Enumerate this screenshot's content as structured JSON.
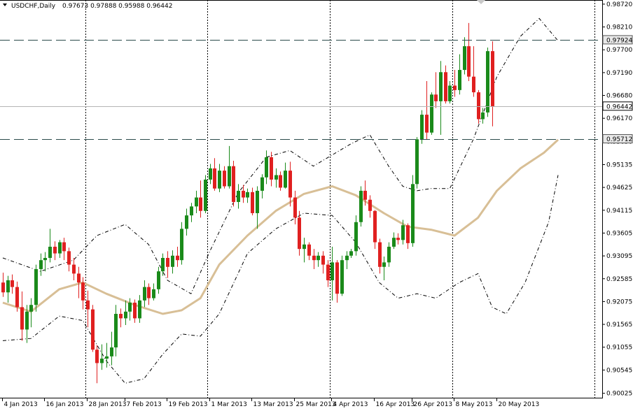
{
  "header": {
    "symbol": "USDCHF,Daily",
    "ohlc": "0.97673 0.97888 0.95988 0.96442"
  },
  "colors": {
    "bull": "#1a8a1a",
    "bear": "#e02020",
    "ma": "#d8bf96",
    "band": "#000000",
    "grid": "#000000",
    "background": "#ffffff"
  },
  "chart_data": {
    "type": "candlestick",
    "title": "USDCHF,Daily",
    "ylim": [
      0.9002,
      0.9875
    ],
    "y_ticks": [
      "0.98720",
      "0.98210",
      "0.97700",
      "0.97190",
      "0.96680",
      "0.96170",
      "0.95650",
      "0.95135",
      "0.94625",
      "0.94115",
      "0.93605",
      "0.93095",
      "0.92585",
      "0.92075",
      "0.91565",
      "0.91055",
      "0.90545",
      "0.90025"
    ],
    "x_ticks": [
      "4 Jan 2013",
      "16 Jan 2013",
      "28 Jan 2013",
      "7 Feb 2013",
      "19 Feb 2013",
      "1 Mar 2013",
      "13 Mar 2013",
      "25 Mar 2013",
      "4 Apr 2013",
      "16 Apr 2013",
      "26 Apr 2013",
      "8 May 2013",
      "20 May 2013"
    ],
    "x_tick_positions": [
      0,
      9,
      18,
      26,
      35,
      44,
      53,
      62,
      70,
      79,
      87,
      96,
      105
    ],
    "vertical_grid_at": [
      18,
      44,
      70,
      96
    ],
    "price_tags": [
      "0.97924",
      "0.96442",
      "0.95712"
    ],
    "price_tag_values": [
      0.97924,
      0.96442,
      0.95712
    ],
    "horizontal_levels_dashed": [
      0.97924,
      0.95712
    ],
    "horizontal_level_solid": 0.96442,
    "series": [
      {
        "name": "",
        "candles": [
          [
            0.925,
            0.9272,
            0.9218,
            0.9228
          ],
          [
            0.9228,
            0.9265,
            0.9205,
            0.9255
          ],
          [
            0.9255,
            0.9268,
            0.9225,
            0.924
          ],
          [
            0.924,
            0.9252,
            0.9185,
            0.9195
          ],
          [
            0.9195,
            0.923,
            0.912,
            0.9145
          ],
          [
            0.9145,
            0.92,
            0.9115,
            0.9185
          ],
          [
            0.9185,
            0.9215,
            0.915,
            0.92
          ],
          [
            0.92,
            0.929,
            0.9185,
            0.928
          ],
          [
            0.928,
            0.9315,
            0.9265,
            0.93
          ],
          [
            0.93,
            0.9318,
            0.9275,
            0.9305
          ],
          [
            0.9305,
            0.937,
            0.9295,
            0.933
          ],
          [
            0.933,
            0.9342,
            0.93,
            0.9315
          ],
          [
            0.9315,
            0.9345,
            0.9305,
            0.934
          ],
          [
            0.934,
            0.935,
            0.93,
            0.932
          ],
          [
            0.932,
            0.9328,
            0.9275,
            0.929
          ],
          [
            0.929,
            0.9305,
            0.9255,
            0.927
          ],
          [
            0.927,
            0.9285,
            0.9215,
            0.925
          ],
          [
            0.925,
            0.9262,
            0.919,
            0.921
          ],
          [
            0.921,
            0.9232,
            0.915,
            0.919
          ],
          [
            0.919,
            0.92,
            0.9095,
            0.91
          ],
          [
            0.91,
            0.911,
            0.9025,
            0.907
          ],
          [
            0.907,
            0.9112,
            0.9055,
            0.908
          ],
          [
            0.908,
            0.9115,
            0.906,
            0.9085
          ],
          [
            0.9085,
            0.914,
            0.9065,
            0.9105
          ],
          [
            0.9105,
            0.92,
            0.9085,
            0.918
          ],
          [
            0.918,
            0.9192,
            0.915,
            0.917
          ],
          [
            0.917,
            0.921,
            0.9155,
            0.9185
          ],
          [
            0.9185,
            0.9215,
            0.9165,
            0.9205
          ],
          [
            0.9205,
            0.9212,
            0.916,
            0.917
          ],
          [
            0.917,
            0.9222,
            0.916,
            0.921
          ],
          [
            0.921,
            0.9255,
            0.9195,
            0.924
          ],
          [
            0.924,
            0.9248,
            0.92,
            0.9215
          ],
          [
            0.9215,
            0.9248,
            0.921,
            0.9235
          ],
          [
            0.9235,
            0.9285,
            0.9225,
            0.9275
          ],
          [
            0.9275,
            0.9315,
            0.9265,
            0.9305
          ],
          [
            0.9305,
            0.932,
            0.926,
            0.9285
          ],
          [
            0.9285,
            0.9322,
            0.927,
            0.931
          ],
          [
            0.931,
            0.933,
            0.9285,
            0.93
          ],
          [
            0.93,
            0.9385,
            0.929,
            0.937
          ],
          [
            0.937,
            0.9415,
            0.9355,
            0.94
          ],
          [
            0.94,
            0.9428,
            0.9385,
            0.942
          ],
          [
            0.942,
            0.9455,
            0.9405,
            0.944
          ],
          [
            0.944,
            0.9478,
            0.9395,
            0.941
          ],
          [
            0.941,
            0.949,
            0.9405,
            0.948
          ],
          [
            0.948,
            0.9515,
            0.947,
            0.9505
          ],
          [
            0.9505,
            0.9528,
            0.9455,
            0.946
          ],
          [
            0.946,
            0.9515,
            0.9452,
            0.95
          ],
          [
            0.95,
            0.951,
            0.946,
            0.9465
          ],
          [
            0.9465,
            0.9555,
            0.946,
            0.951
          ],
          [
            0.951,
            0.9522,
            0.942,
            0.943
          ],
          [
            0.943,
            0.947,
            0.9415,
            0.9455
          ],
          [
            0.9455,
            0.9468,
            0.9428,
            0.944
          ],
          [
            0.944,
            0.946,
            0.9428,
            0.9452
          ],
          [
            0.9452,
            0.9462,
            0.94,
            0.9405
          ],
          [
            0.9405,
            0.9465,
            0.937,
            0.9455
          ],
          [
            0.9455,
            0.9492,
            0.9438,
            0.9485
          ],
          [
            0.9485,
            0.9545,
            0.947,
            0.953
          ],
          [
            0.953,
            0.9542,
            0.9465,
            0.948
          ],
          [
            0.948,
            0.9505,
            0.9462,
            0.949
          ],
          [
            0.949,
            0.9498,
            0.9455,
            0.9462
          ],
          [
            0.9462,
            0.9518,
            0.946,
            0.95
          ],
          [
            0.95,
            0.952,
            0.942,
            0.944
          ],
          [
            0.944,
            0.9455,
            0.938,
            0.9395
          ],
          [
            0.9395,
            0.941,
            0.931,
            0.9325
          ],
          [
            0.9325,
            0.935,
            0.9295,
            0.9335
          ],
          [
            0.9335,
            0.934,
            0.93,
            0.931
          ],
          [
            0.931,
            0.9325,
            0.928,
            0.93
          ],
          [
            0.93,
            0.9318,
            0.9285,
            0.931
          ],
          [
            0.931,
            0.932,
            0.927,
            0.929
          ],
          [
            0.929,
            0.93,
            0.924,
            0.9255
          ],
          [
            0.9255,
            0.933,
            0.921,
            0.9295
          ],
          [
            0.9295,
            0.93,
            0.9205,
            0.9225
          ],
          [
            0.9225,
            0.931,
            0.922,
            0.93
          ],
          [
            0.93,
            0.932,
            0.928,
            0.931
          ],
          [
            0.931,
            0.9325,
            0.9305,
            0.932
          ],
          [
            0.932,
            0.94,
            0.931,
            0.9385
          ],
          [
            0.9385,
            0.9465,
            0.9375,
            0.9455
          ],
          [
            0.9455,
            0.9478,
            0.9422,
            0.9435
          ],
          [
            0.9435,
            0.9445,
            0.9395,
            0.941
          ],
          [
            0.941,
            0.9412,
            0.9325,
            0.934
          ],
          [
            0.934,
            0.9348,
            0.927,
            0.9285
          ],
          [
            0.9285,
            0.9308,
            0.9255,
            0.9295
          ],
          [
            0.9295,
            0.934,
            0.9285,
            0.933
          ],
          [
            0.933,
            0.9362,
            0.9325,
            0.935
          ],
          [
            0.935,
            0.936,
            0.9335,
            0.9345
          ],
          [
            0.9345,
            0.939,
            0.9335,
            0.9378
          ],
          [
            0.9378,
            0.9382,
            0.9325,
            0.9338
          ],
          [
            0.9338,
            0.949,
            0.933,
            0.947
          ],
          [
            0.947,
            0.9575,
            0.946,
            0.957
          ],
          [
            0.957,
            0.9635,
            0.956,
            0.9625
          ],
          [
            0.9625,
            0.97,
            0.957,
            0.9585
          ],
          [
            0.9585,
            0.9675,
            0.958,
            0.967
          ],
          [
            0.967,
            0.972,
            0.964,
            0.9655
          ],
          [
            0.9655,
            0.9745,
            0.958,
            0.972
          ],
          [
            0.972,
            0.9735,
            0.965,
            0.9655
          ],
          [
            0.9655,
            0.97,
            0.965,
            0.969
          ],
          [
            0.969,
            0.9725,
            0.9665,
            0.968
          ],
          [
            0.968,
            0.976,
            0.967,
            0.9725
          ],
          [
            0.9725,
            0.9798,
            0.9715,
            0.9778
          ],
          [
            0.9778,
            0.983,
            0.97,
            0.971
          ],
          [
            0.971,
            0.9778,
            0.9665,
            0.9675
          ],
          [
            0.9675,
            0.968,
            0.9605,
            0.9615
          ],
          [
            0.9615,
            0.964,
            0.9605,
            0.963
          ],
          [
            0.963,
            0.9775,
            0.962,
            0.9767
          ],
          [
            0.9767,
            0.9789,
            0.9599,
            0.9644
          ]
        ]
      },
      {
        "name": "",
        "kind": "moving-average",
        "points": [
          [
            0,
            0.9205
          ],
          [
            6,
            0.9185
          ],
          [
            12,
            0.9235
          ],
          [
            17,
            0.925
          ],
          [
            22,
            0.9225
          ],
          [
            28,
            0.92
          ],
          [
            34,
            0.918
          ],
          [
            38,
            0.9188
          ],
          [
            42,
            0.9215
          ],
          [
            46,
            0.929
          ],
          [
            52,
            0.9355
          ],
          [
            58,
            0.941
          ],
          [
            64,
            0.9448
          ],
          [
            70,
            0.9465
          ],
          [
            75,
            0.9445
          ],
          [
            81,
            0.9405
          ],
          [
            86,
            0.9375
          ],
          [
            91,
            0.9368
          ],
          [
            96,
            0.9355
          ],
          [
            101,
            0.9395
          ],
          [
            105,
            0.9455
          ],
          [
            110,
            0.9505
          ],
          [
            115,
            0.954
          ],
          [
            118,
            0.9569
          ]
        ]
      },
      {
        "name": "",
        "kind": "upper-band",
        "points": [
          [
            0,
            0.9305
          ],
          [
            8,
            0.9275
          ],
          [
            15,
            0.93
          ],
          [
            20,
            0.9355
          ],
          [
            26,
            0.938
          ],
          [
            31,
            0.9335
          ],
          [
            35,
            0.9255
          ],
          [
            40,
            0.9225
          ],
          [
            44,
            0.932
          ],
          [
            50,
            0.945
          ],
          [
            56,
            0.953
          ],
          [
            61,
            0.9545
          ],
          [
            66,
            0.951
          ],
          [
            70,
            0.9535
          ],
          [
            74,
            0.956
          ],
          [
            78,
            0.958
          ],
          [
            82,
            0.951
          ],
          [
            85,
            0.9465
          ],
          [
            88,
            0.9455
          ],
          [
            91,
            0.946
          ],
          [
            95,
            0.946
          ],
          [
            100,
            0.957
          ],
          [
            105,
            0.971
          ],
          [
            110,
            0.98
          ],
          [
            114,
            0.984
          ],
          [
            118,
            0.979
          ]
        ]
      },
      {
        "name": "",
        "kind": "lower-band",
        "points": [
          [
            0,
            0.912
          ],
          [
            6,
            0.9125
          ],
          [
            12,
            0.9175
          ],
          [
            17,
            0.9165
          ],
          [
            22,
            0.9075
          ],
          [
            26,
            0.9025
          ],
          [
            30,
            0.9035
          ],
          [
            34,
            0.909
          ],
          [
            38,
            0.9135
          ],
          [
            42,
            0.913
          ],
          [
            46,
            0.918
          ],
          [
            52,
            0.9315
          ],
          [
            58,
            0.937
          ],
          [
            64,
            0.9405
          ],
          [
            70,
            0.94
          ],
          [
            75,
            0.934
          ],
          [
            80,
            0.925
          ],
          [
            84,
            0.9215
          ],
          [
            88,
            0.9225
          ],
          [
            92,
            0.9215
          ],
          [
            97,
            0.925
          ],
          [
            101,
            0.927
          ],
          [
            104,
            0.9195
          ],
          [
            107,
            0.918
          ],
          [
            111,
            0.925
          ],
          [
            116,
            0.9385
          ],
          [
            118,
            0.949
          ]
        ]
      }
    ]
  }
}
